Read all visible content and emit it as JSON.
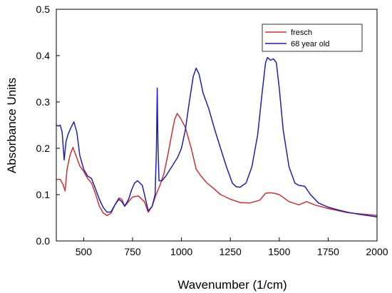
{
  "chart_data": {
    "type": "line",
    "xlabel": "Wavenumber (1/cm)",
    "ylabel": "Absorbance Units",
    "xlim": [
      360,
      2000
    ],
    "ylim": [
      0.0,
      0.5
    ],
    "x_ticks": [
      500,
      750,
      1000,
      1250,
      1500,
      1750,
      2000
    ],
    "x_tick_labels": [
      "500",
      "750",
      "1000",
      "1250",
      "1500",
      "1750",
      "2000"
    ],
    "y_ticks": [
      0.0,
      0.1,
      0.2,
      0.3,
      0.4,
      0.5
    ],
    "y_tick_labels": [
      "0.0",
      "0.1",
      "0.2",
      "0.3",
      "0.4",
      "0.5"
    ],
    "grid": false,
    "legend_position": "top-right",
    "series": [
      {
        "name": "fresch",
        "color": "#d03030",
        "points": [
          [
            360,
            0.133
          ],
          [
            380,
            0.133
          ],
          [
            395,
            0.121
          ],
          [
            405,
            0.108
          ],
          [
            415,
            0.155
          ],
          [
            430,
            0.185
          ],
          [
            445,
            0.202
          ],
          [
            460,
            0.185
          ],
          [
            480,
            0.162
          ],
          [
            500,
            0.15
          ],
          [
            520,
            0.135
          ],
          [
            540,
            0.125
          ],
          [
            560,
            0.102
          ],
          [
            580,
            0.075
          ],
          [
            600,
            0.06
          ],
          [
            620,
            0.055
          ],
          [
            640,
            0.06
          ],
          [
            660,
            0.078
          ],
          [
            680,
            0.093
          ],
          [
            695,
            0.09
          ],
          [
            710,
            0.075
          ],
          [
            730,
            0.085
          ],
          [
            750,
            0.095
          ],
          [
            780,
            0.097
          ],
          [
            810,
            0.085
          ],
          [
            830,
            0.062
          ],
          [
            850,
            0.075
          ],
          [
            870,
            0.1
          ],
          [
            890,
            0.12
          ],
          [
            910,
            0.145
          ],
          [
            930,
            0.185
          ],
          [
            950,
            0.23
          ],
          [
            965,
            0.262
          ],
          [
            978,
            0.275
          ],
          [
            995,
            0.265
          ],
          [
            1020,
            0.245
          ],
          [
            1050,
            0.2
          ],
          [
            1075,
            0.155
          ],
          [
            1100,
            0.14
          ],
          [
            1130,
            0.125
          ],
          [
            1160,
            0.115
          ],
          [
            1200,
            0.1
          ],
          [
            1250,
            0.09
          ],
          [
            1300,
            0.083
          ],
          [
            1350,
            0.082
          ],
          [
            1400,
            0.088
          ],
          [
            1430,
            0.103
          ],
          [
            1450,
            0.104
          ],
          [
            1475,
            0.103
          ],
          [
            1500,
            0.1
          ],
          [
            1550,
            0.085
          ],
          [
            1600,
            0.078
          ],
          [
            1640,
            0.085
          ],
          [
            1680,
            0.078
          ],
          [
            1750,
            0.07
          ],
          [
            1850,
            0.061
          ],
          [
            1950,
            0.057
          ],
          [
            2000,
            0.055
          ]
        ]
      },
      {
        "name": "68 year old",
        "color": "#1f1fb4",
        "points": [
          [
            360,
            0.25
          ],
          [
            370,
            0.248
          ],
          [
            380,
            0.25
          ],
          [
            390,
            0.235
          ],
          [
            400,
            0.175
          ],
          [
            410,
            0.215
          ],
          [
            420,
            0.23
          ],
          [
            435,
            0.245
          ],
          [
            450,
            0.257
          ],
          [
            465,
            0.235
          ],
          [
            480,
            0.185
          ],
          [
            500,
            0.155
          ],
          [
            520,
            0.14
          ],
          [
            540,
            0.135
          ],
          [
            560,
            0.113
          ],
          [
            580,
            0.09
          ],
          [
            600,
            0.072
          ],
          [
            620,
            0.062
          ],
          [
            640,
            0.063
          ],
          [
            660,
            0.078
          ],
          [
            680,
            0.09
          ],
          [
            695,
            0.085
          ],
          [
            710,
            0.075
          ],
          [
            730,
            0.09
          ],
          [
            745,
            0.11
          ],
          [
            760,
            0.125
          ],
          [
            775,
            0.13
          ],
          [
            800,
            0.12
          ],
          [
            830,
            0.065
          ],
          [
            850,
            0.075
          ],
          [
            865,
            0.1
          ],
          [
            872,
            0.2
          ],
          [
            876,
            0.33
          ],
          [
            880,
            0.2
          ],
          [
            885,
            0.13
          ],
          [
            900,
            0.13
          ],
          [
            920,
            0.14
          ],
          [
            950,
            0.16
          ],
          [
            980,
            0.18
          ],
          [
            1000,
            0.2
          ],
          [
            1020,
            0.24
          ],
          [
            1040,
            0.3
          ],
          [
            1060,
            0.355
          ],
          [
            1075,
            0.373
          ],
          [
            1090,
            0.36
          ],
          [
            1110,
            0.32
          ],
          [
            1140,
            0.285
          ],
          [
            1170,
            0.24
          ],
          [
            1200,
            0.2
          ],
          [
            1230,
            0.16
          ],
          [
            1260,
            0.125
          ],
          [
            1280,
            0.117
          ],
          [
            1300,
            0.116
          ],
          [
            1330,
            0.125
          ],
          [
            1360,
            0.16
          ],
          [
            1390,
            0.23
          ],
          [
            1415,
            0.33
          ],
          [
            1430,
            0.385
          ],
          [
            1440,
            0.396
          ],
          [
            1455,
            0.39
          ],
          [
            1470,
            0.393
          ],
          [
            1485,
            0.385
          ],
          [
            1500,
            0.33
          ],
          [
            1520,
            0.24
          ],
          [
            1550,
            0.16
          ],
          [
            1580,
            0.125
          ],
          [
            1600,
            0.12
          ],
          [
            1630,
            0.118
          ],
          [
            1660,
            0.1
          ],
          [
            1700,
            0.082
          ],
          [
            1750,
            0.073
          ],
          [
            1800,
            0.067
          ],
          [
            1850,
            0.062
          ],
          [
            1900,
            0.058
          ],
          [
            1950,
            0.055
          ],
          [
            2000,
            0.052
          ]
        ]
      }
    ]
  }
}
